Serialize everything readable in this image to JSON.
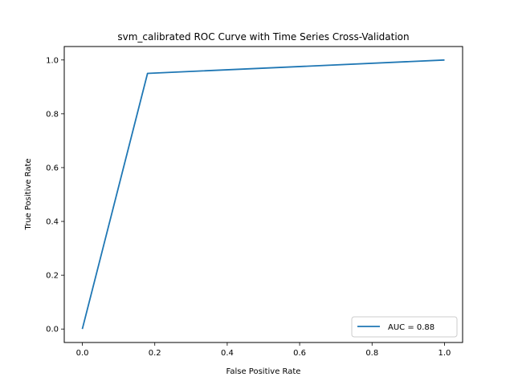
{
  "chart_data": {
    "type": "line",
    "title": "svm_calibrated ROC Curve with Time Series Cross-Validation",
    "xlabel": "False Positive Rate",
    "ylabel": "True Positive Rate",
    "xlim": [
      -0.05,
      1.05
    ],
    "ylim": [
      -0.05,
      1.05
    ],
    "xticks": [
      0.0,
      0.2,
      0.4,
      0.6,
      0.8,
      1.0
    ],
    "yticks": [
      0.0,
      0.2,
      0.4,
      0.6,
      0.8,
      1.0
    ],
    "xtick_labels": [
      "0.0",
      "0.2",
      "0.4",
      "0.6",
      "0.8",
      "1.0"
    ],
    "ytick_labels": [
      "0.0",
      "0.2",
      "0.4",
      "0.6",
      "0.8",
      "1.0"
    ],
    "grid": false,
    "legend_position": "lower-right",
    "series": [
      {
        "name": "AUC = 0.88",
        "color": "#1f77b4",
        "x": [
          0.0,
          0.18,
          1.0
        ],
        "y": [
          0.0,
          0.95,
          1.0
        ]
      }
    ]
  }
}
